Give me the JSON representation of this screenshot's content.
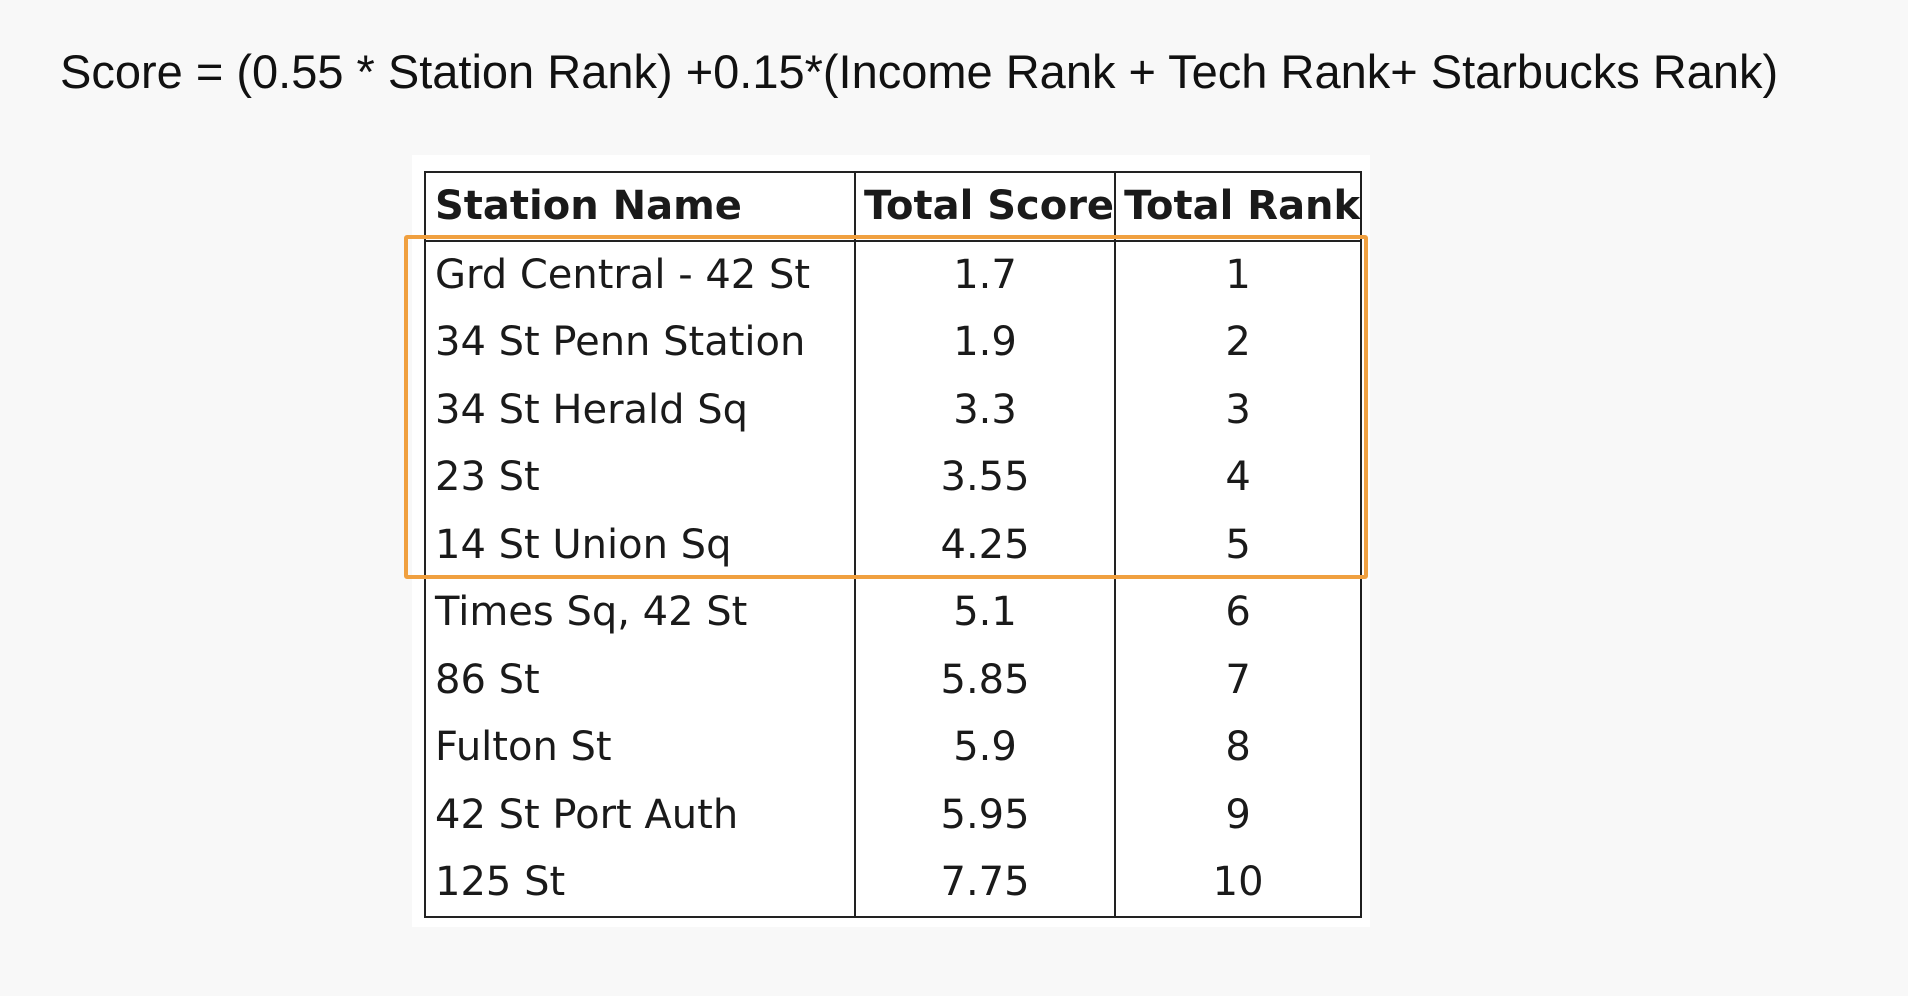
{
  "formula": "Score = (0.55 * Station Rank) +0.15*(Income Rank + Tech Rank+ Starbucks Rank)",
  "table": {
    "headers": [
      "Station Name",
      "Total Score",
      "Total Rank"
    ],
    "rows": [
      {
        "station": "Grd Central - 42 St",
        "score": "1.7",
        "rank": "1"
      },
      {
        "station": "34 St Penn Station",
        "score": "1.9",
        "rank": "2"
      },
      {
        "station": "34 St Herald Sq",
        "score": "3.3",
        "rank": "3"
      },
      {
        "station": "23 St",
        "score": "3.55",
        "rank": "4"
      },
      {
        "station": "14 St Union Sq",
        "score": "4.25",
        "rank": "5"
      },
      {
        "station": "Times Sq, 42 St",
        "score": "5.1",
        "rank": "6"
      },
      {
        "station": "86 St",
        "score": "5.85",
        "rank": "7"
      },
      {
        "station": "Fulton St",
        "score": "5.9",
        "rank": "8"
      },
      {
        "station": "42 St Port Auth",
        "score": "5.95",
        "rank": "9"
      },
      {
        "station": "125 St",
        "score": "7.75",
        "rank": "10"
      }
    ]
  },
  "highlight": {
    "rows_highlighted": 5,
    "color": "#f0a040"
  }
}
